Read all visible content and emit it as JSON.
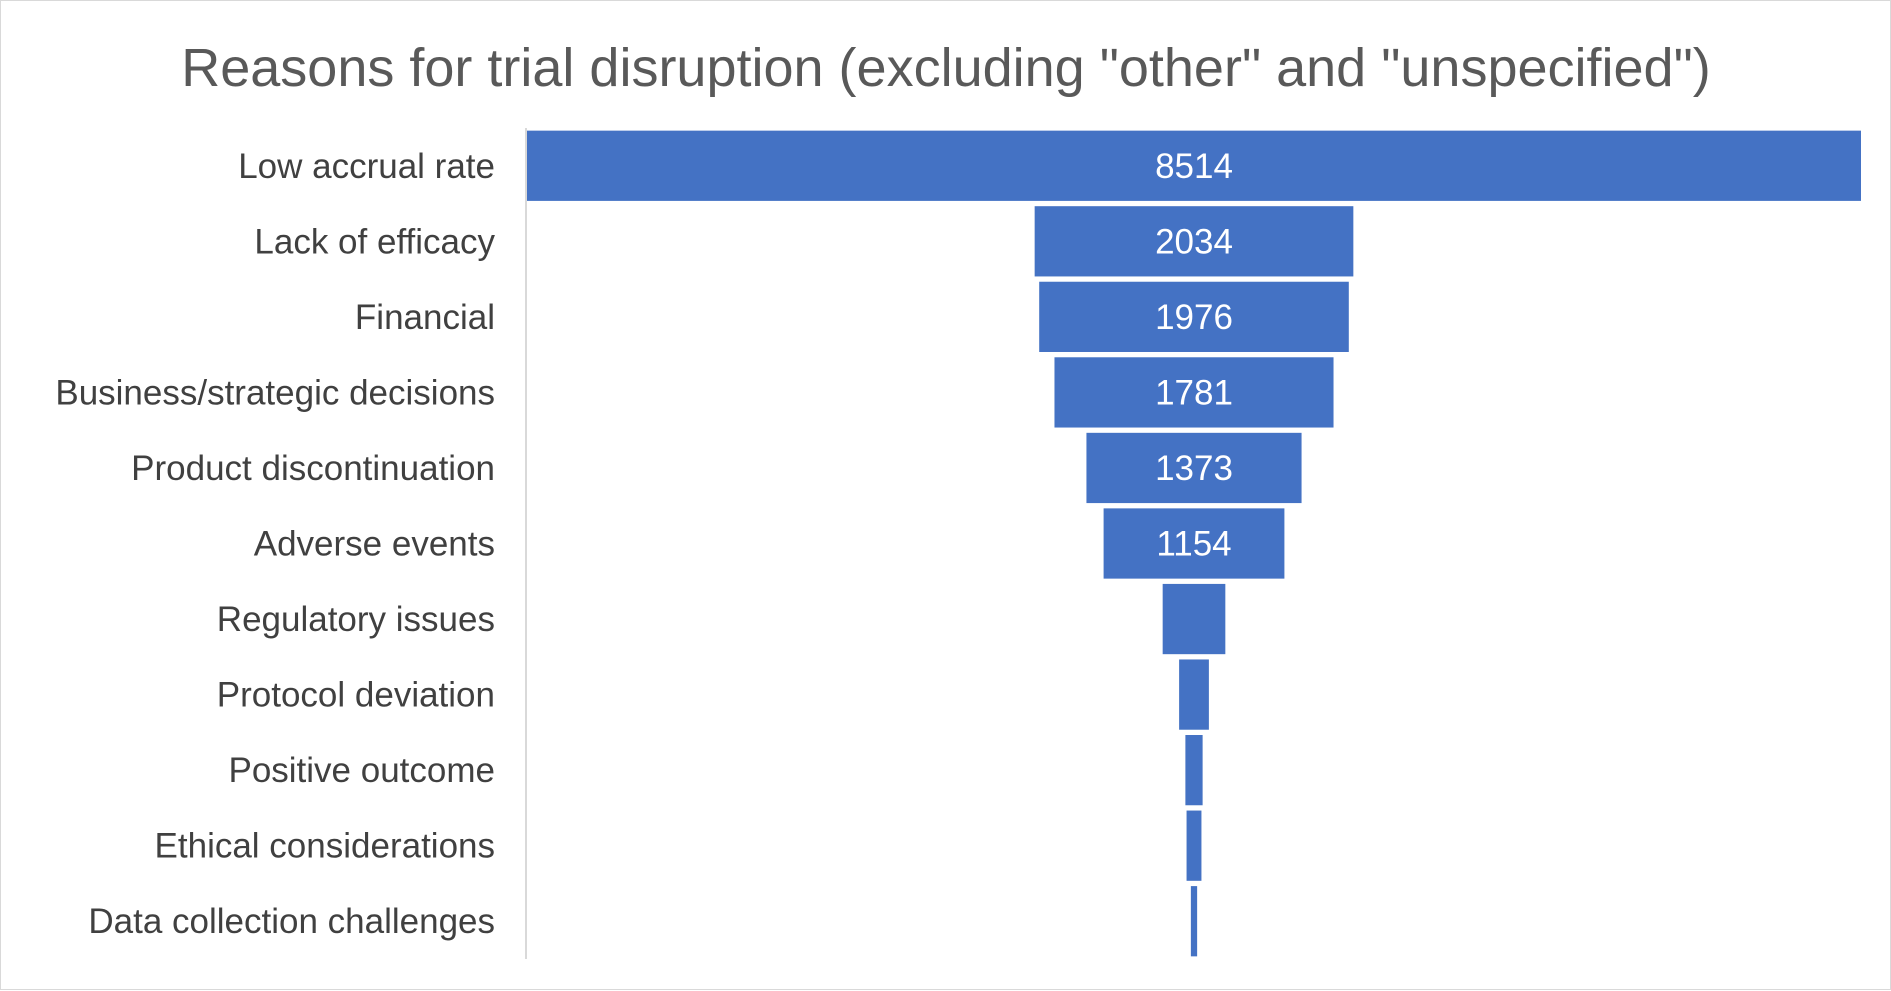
{
  "chart_data": {
    "type": "bar",
    "subtype": "funnel",
    "title": "Reasons for trial disruption (excluding \"other\" and \"unspecified\")",
    "xlabel": "",
    "ylabel": "",
    "categories": [
      "Low accrual rate",
      "Lack of efficacy",
      "Financial",
      "Business/strategic decisions",
      "Product discontinuation",
      "Adverse events",
      "Regulatory issues",
      "Protocol deviation",
      "Positive outcome",
      "Ethical considerations",
      "Data collection challenges"
    ],
    "values": [
      8514,
      2034,
      1976,
      1781,
      1373,
      1154,
      400,
      190,
      110,
      95,
      40
    ],
    "data_labels": [
      "8514",
      "2034",
      "1976",
      "1781",
      "1373",
      "1154",
      "",
      "",
      "",
      "",
      ""
    ],
    "xlim": [
      0,
      8514
    ],
    "grid": false,
    "legend": "none",
    "colors": {
      "bar": "#4472C4",
      "axis": "#d9d9d9",
      "title": "#595959",
      "label": "#404040",
      "data_label": "#ffffff"
    }
  }
}
